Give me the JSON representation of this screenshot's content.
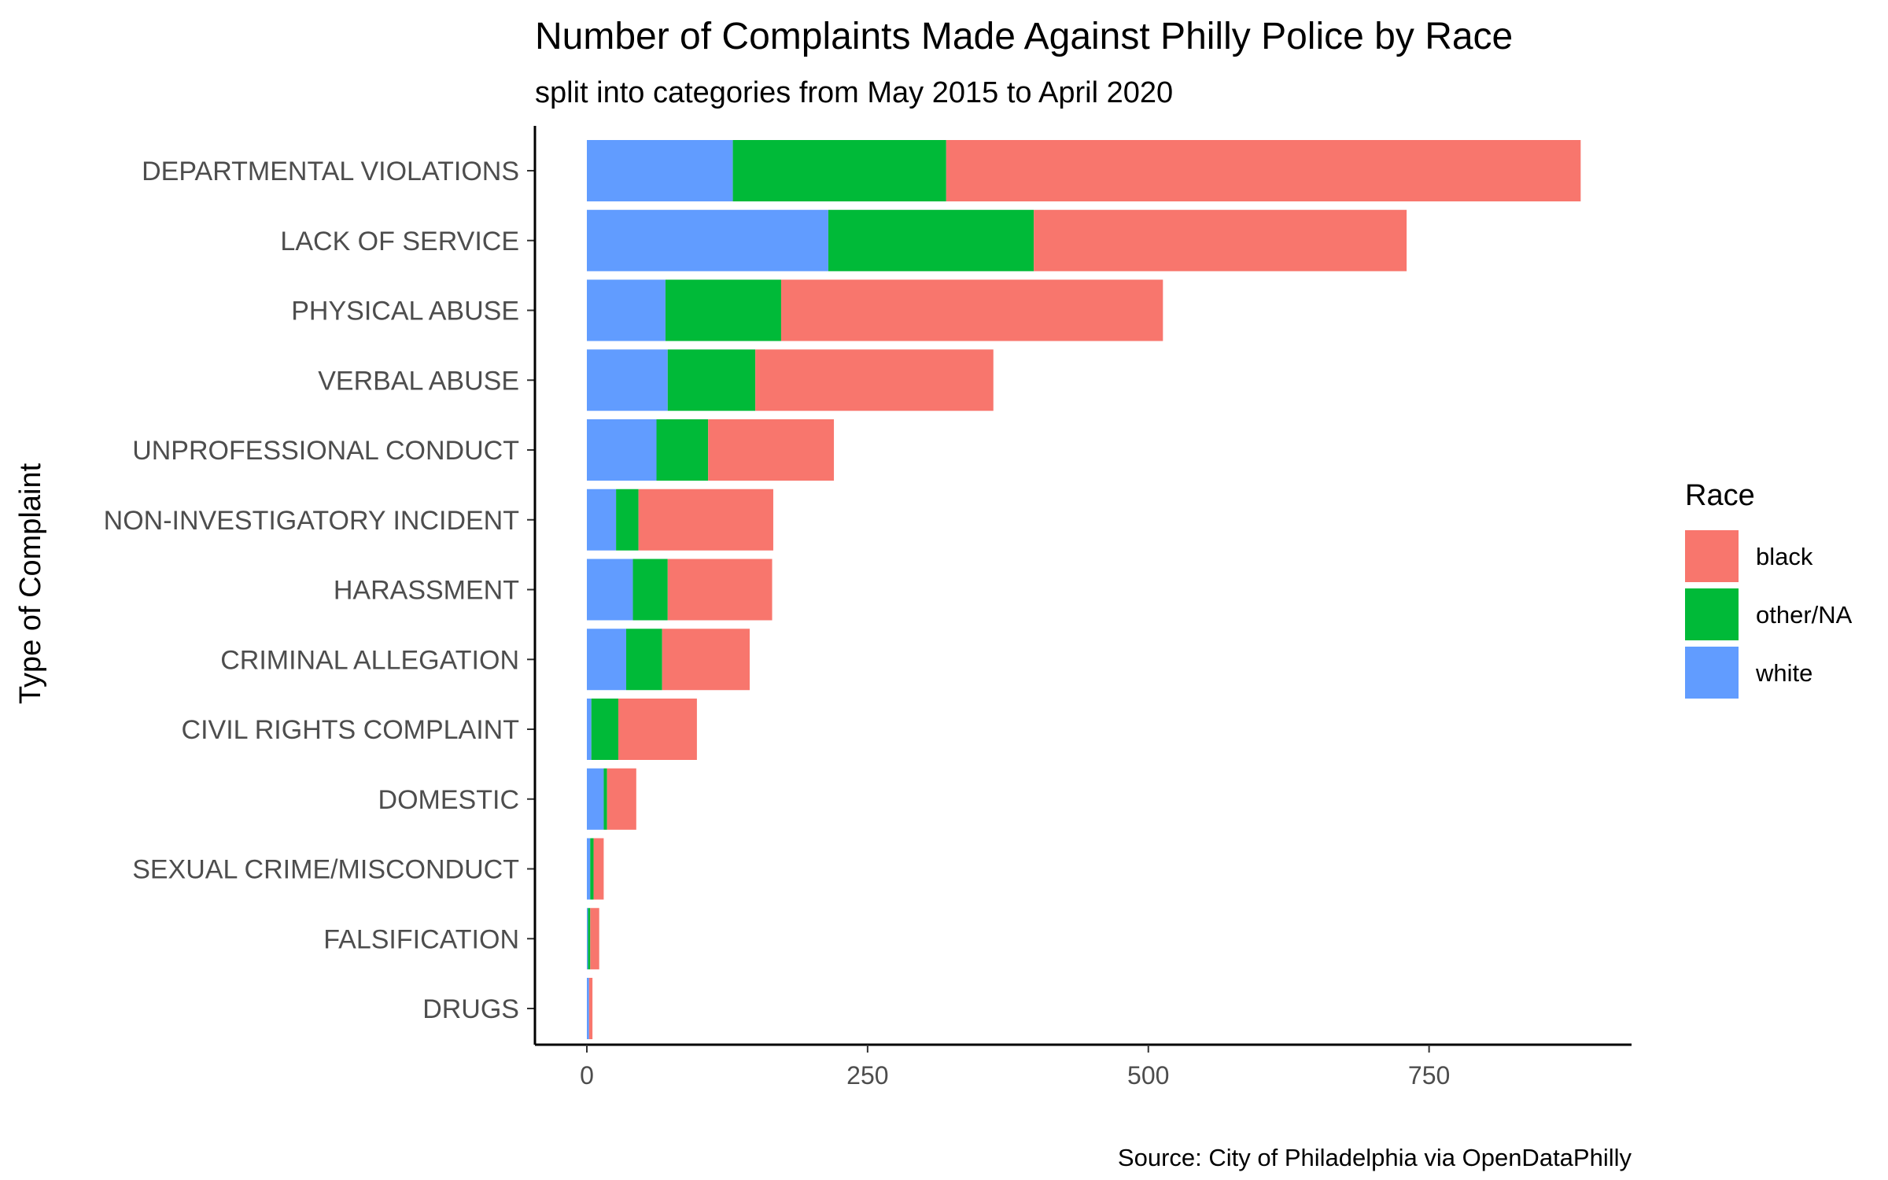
{
  "chart_data": {
    "type": "bar",
    "orientation": "horizontal",
    "stacked": true,
    "title": "Number of Complaints Made Against Philly Police by Race",
    "subtitle": "split into categories from May 2015 to April 2020",
    "xlabel": "",
    "ylabel": "Type of Complaint",
    "caption": "Source: City of Philadelphia via OpenDataPhilly",
    "categories": [
      "DEPARTMENTAL VIOLATIONS",
      "LACK OF SERVICE",
      "PHYSICAL ABUSE",
      "VERBAL ABUSE",
      "UNPROFESSIONAL CONDUCT",
      "NON-INVESTIGATORY INCIDENT",
      "HARASSMENT",
      "CRIMINAL ALLEGATION",
      "CIVIL RIGHTS COMPLAINT",
      "DOMESTIC",
      "SEXUAL CRIME/MISCONDUCT",
      "FALSIFICATION",
      "DRUGS"
    ],
    "series": [
      {
        "name": "white",
        "color": "#619CFF",
        "values": [
          130,
          215,
          70,
          72,
          62,
          26,
          41,
          35,
          4,
          15,
          3,
          1,
          2
        ]
      },
      {
        "name": "other/NA",
        "color": "#00BA38",
        "values": [
          190,
          183,
          103,
          78,
          46,
          20,
          31,
          32,
          24,
          3,
          3,
          2,
          0
        ]
      },
      {
        "name": "black",
        "color": "#F8766D",
        "values": [
          565,
          332,
          340,
          212,
          112,
          120,
          93,
          78,
          70,
          26,
          9,
          8,
          3
        ]
      }
    ],
    "xlim": [
      0,
      900
    ],
    "xticks": [
      0,
      250,
      500,
      750
    ],
    "xtick_labels": [
      "0",
      "250",
      "500",
      "750"
    ],
    "legend": {
      "title": "Race",
      "position": "right",
      "entries": [
        "black",
        "other/NA",
        "white"
      ]
    },
    "grid": false
  }
}
